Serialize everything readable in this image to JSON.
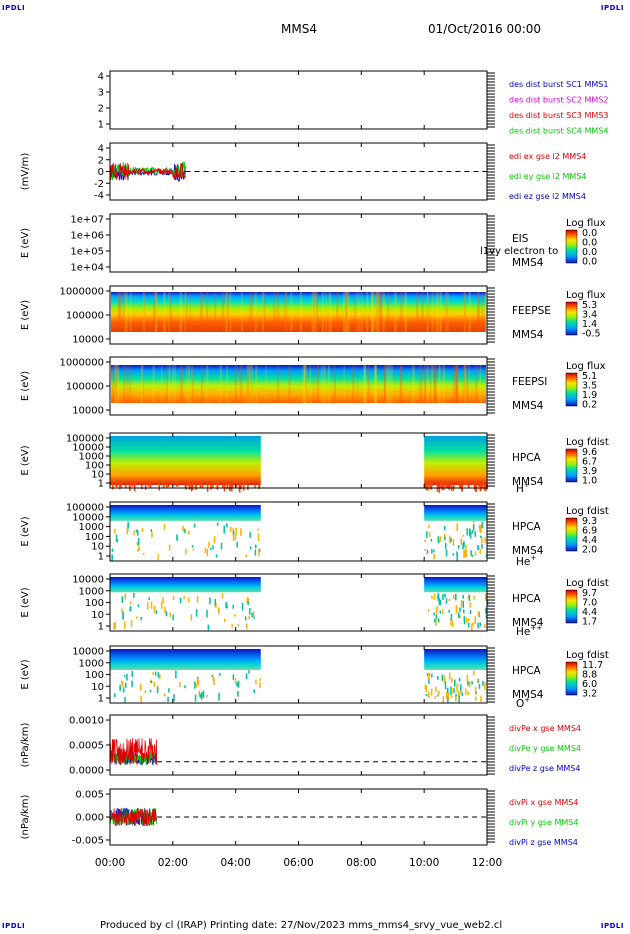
{
  "corner_tag": "IPDLI",
  "header": {
    "spacecraft": "MMS4",
    "datetime": "01/Oct/2016 00:00"
  },
  "footer": "Produced by cl (IRAP)   Printing date: 27/Nov/2023   mms_mms4_srvy_vue_web2.cl",
  "colors": {
    "blue": "#0000cc",
    "magenta": "#dd00dd",
    "red": "#dd0000",
    "green": "#00cc00"
  },
  "chart_data": [
    {
      "type": "line",
      "title": "",
      "ylim": [
        0.5,
        4.5
      ],
      "ytick_labels": [
        "4",
        "3",
        "2",
        "1"
      ],
      "ylabel": "",
      "legend": [
        {
          "label": "des dist burst SC1 MMS1",
          "color": "#0000cc"
        },
        {
          "label": "des dist burst SC2 MMS2",
          "color": "#dd00dd"
        },
        {
          "label": "des dist burst SC3 MMS3",
          "color": "#dd0000"
        },
        {
          "label": "des dist burst SC4 MMS4",
          "color": "#00cc00"
        }
      ],
      "series": []
    },
    {
      "type": "line",
      "ylabel": "(mV/m)",
      "ylim": [
        -5,
        5
      ],
      "ytick_labels": [
        "4",
        "2",
        "0",
        "-2",
        "-4"
      ],
      "legend": [
        {
          "label": "edi ex gse l2 MMS4",
          "color": "#dd0000"
        },
        {
          "label": "edi ey gse l2 MMS4",
          "color": "#00cc00"
        },
        {
          "label": "edi ez gse l2 MMS4",
          "color": "#0000cc"
        }
      ],
      "data_span_hours": [
        0.0,
        2.4
      ],
      "zero_line": true
    },
    {
      "type": "heatmap",
      "ylabel": "E (eV)",
      "ytick_labels": [
        "1e+07",
        "1e+06",
        "1e+05",
        "1e+04"
      ],
      "instrument": "EIS",
      "sc": "MMS4",
      "overlay_text": "l1vy electron to",
      "colorbar": {
        "title": "Log flux",
        "ticks": [
          "0.0",
          "0.0",
          "0.0",
          "0.0"
        ]
      }
    },
    {
      "type": "heatmap",
      "ylabel": "E (eV)",
      "ytick_labels": [
        "1000000",
        "100000",
        "10000"
      ],
      "instrument": "FEEPSE",
      "sc": "MMS4",
      "colorbar": {
        "title": "Log flux",
        "ticks": [
          "5.3",
          "3.4",
          "1.4",
          "-0.5"
        ]
      },
      "data_span_hours": [
        0.0,
        12.0
      ]
    },
    {
      "type": "heatmap",
      "ylabel": "E (eV)",
      "ytick_labels": [
        "1000000",
        "100000",
        "10000"
      ],
      "instrument": "FEEPSI",
      "sc": "MMS4",
      "colorbar": {
        "title": "Log flux",
        "ticks": [
          "5.1",
          "3.5",
          "1.9",
          "0.2"
        ]
      },
      "data_span_hours": [
        0.0,
        12.0
      ]
    },
    {
      "type": "heatmap",
      "ylabel": "E (eV)",
      "ytick_labels": [
        "100000",
        "10000",
        "1000",
        "100",
        "10",
        "1"
      ],
      "instrument": "HPCA",
      "sc": "MMS4",
      "species": "H",
      "species_sup": "+",
      "colorbar": {
        "title": "Log fdist",
        "ticks": [
          "9.6",
          "6.7",
          "3.9",
          "1.0"
        ]
      },
      "data_span_hours": [
        [
          0.0,
          4.8
        ],
        [
          10.0,
          12.0
        ]
      ]
    },
    {
      "type": "heatmap",
      "ylabel": "E (eV)",
      "ytick_labels": [
        "100000",
        "10000",
        "1000",
        "100",
        "10",
        "1"
      ],
      "instrument": "HPCA",
      "sc": "MMS4",
      "species": "He",
      "species_sup": "+",
      "colorbar": {
        "title": "Log fdist",
        "ticks": [
          "9.3",
          "6.9",
          "4.4",
          "2.0"
        ]
      },
      "data_span_hours": [
        [
          0.0,
          4.8
        ],
        [
          10.0,
          12.0
        ]
      ]
    },
    {
      "type": "heatmap",
      "ylabel": "E (eV)",
      "ytick_labels": [
        "10000",
        "1000",
        "100",
        "10",
        "1"
      ],
      "instrument": "HPCA",
      "sc": "MMS4",
      "species": "He",
      "species_sup": "++",
      "colorbar": {
        "title": "Log fdist",
        "ticks": [
          "9.7",
          "7.0",
          "4.4",
          "1.7"
        ]
      },
      "data_span_hours": [
        [
          0.0,
          4.8
        ],
        [
          10.0,
          12.0
        ]
      ]
    },
    {
      "type": "heatmap",
      "ylabel": "E (eV)",
      "ytick_labels": [
        "10000",
        "1000",
        "100",
        "10",
        "1"
      ],
      "instrument": "HPCA",
      "sc": "MMS4",
      "species": "O",
      "species_sup": "+",
      "colorbar": {
        "title": "Log fdist",
        "ticks": [
          "11.7",
          "8.8",
          "6.0",
          "3.2"
        ]
      },
      "data_span_hours": [
        [
          0.0,
          4.8
        ],
        [
          10.0,
          12.0
        ]
      ]
    },
    {
      "type": "line",
      "ylabel": "(nPa/km)",
      "ytick_labels": [
        "0.0010",
        "0.0005",
        "0.0000"
      ],
      "legend": [
        {
          "label": "divPe x gse MMS4",
          "color": "#dd0000"
        },
        {
          "label": "divPe y gse MMS4",
          "color": "#00cc00"
        },
        {
          "label": "divPe z gse MMS4",
          "color": "#0000cc"
        }
      ],
      "data_span_hours": [
        0.0,
        1.5
      ],
      "zero_line": true
    },
    {
      "type": "line",
      "ylabel": "(nPa/km)",
      "ytick_labels": [
        "0.005",
        "0.000",
        "-0.005"
      ],
      "legend": [
        {
          "label": "divPi x gse MMS4",
          "color": "#dd0000"
        },
        {
          "label": "divPi y gse MMS4",
          "color": "#00cc00"
        },
        {
          "label": "divPi z gse MMS4",
          "color": "#0000cc"
        }
      ],
      "data_span_hours": [
        0.0,
        1.5
      ],
      "zero_line": true
    }
  ],
  "time_axis": {
    "ticks": [
      "00:00",
      "02:00",
      "04:00",
      "06:00",
      "08:00",
      "10:00",
      "12:00"
    ],
    "range_hours": [
      0,
      12
    ]
  }
}
